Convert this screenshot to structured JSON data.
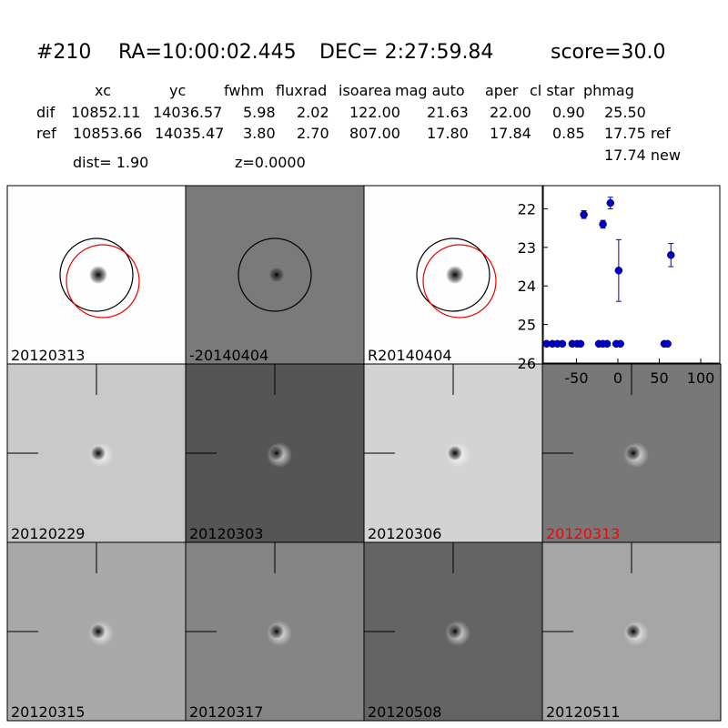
{
  "header": {
    "id": "#210",
    "ra": "RA=10:00:02.445",
    "dec": "DEC= 2:27:59.84",
    "score": "score=30.0"
  },
  "table": {
    "columns": [
      "xc",
      "yc",
      "fwhm",
      "fluxrad",
      "isoarea",
      "mag auto",
      "aper",
      "cl star",
      "phmag"
    ],
    "rows": [
      [
        "dif",
        "10852.11",
        "14036.57",
        "5.98",
        "2.02",
        "122.00",
        "21.63",
        "22.00",
        "0.90",
        "25.50"
      ],
      [
        "ref",
        "10853.66",
        "14035.47",
        "3.80",
        "2.70",
        "807.00",
        "17.80",
        "17.84",
        "0.85",
        "17.75 ref"
      ]
    ],
    "extra": "17.74 new"
  },
  "info": {
    "dist": "dist=  1.90",
    "z": "z=0.0000"
  },
  "panels": [
    {
      "label": "20120313"
    },
    {
      "label": "-20140404"
    },
    {
      "label": "R20140404"
    },
    {
      "label": "20120229"
    },
    {
      "label": "20120303"
    },
    {
      "label": "20120306"
    },
    {
      "label": "20120313",
      "color": "#ff0000"
    },
    {
      "label": "20120315"
    },
    {
      "label": "20120317"
    },
    {
      "label": "20120508"
    },
    {
      "label": "20120511"
    }
  ],
  "chart_data": {
    "type": "scatter",
    "color": "#0000cc",
    "x": [
      -86,
      -79,
      -73,
      -67,
      -55,
      -49,
      -45,
      -41,
      -23,
      -18,
      -18,
      -13,
      -9,
      -2,
      1,
      3,
      56,
      60,
      64
    ],
    "y": [
      25.5,
      25.5,
      25.5,
      25.5,
      25.5,
      25.5,
      25.5,
      22.15,
      25.5,
      22.4,
      25.5,
      25.5,
      21.85,
      25.5,
      23.6,
      25.5,
      25.5,
      25.5,
      23.2
    ],
    "yerr": [
      0.05,
      0.05,
      0.05,
      0.05,
      0.05,
      0.05,
      0.05,
      0.1,
      0.05,
      0.1,
      0.05,
      0.05,
      0.15,
      0.05,
      0.8,
      0.05,
      0.05,
      0.05,
      0.3
    ],
    "xlim": [
      -90,
      123
    ],
    "ylim": [
      26,
      21.4
    ],
    "xticks": [
      -50,
      0,
      50,
      100
    ],
    "yticks": [
      22,
      23,
      24,
      25,
      26
    ]
  }
}
